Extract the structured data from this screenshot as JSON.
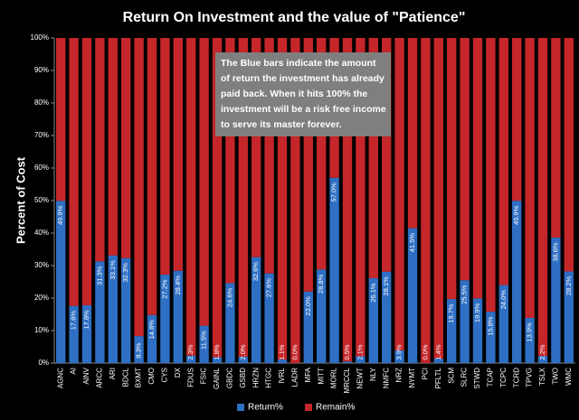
{
  "chart_data": {
    "type": "stacked_bar_100",
    "title": "Return On Investment and the value of \"Patience\"",
    "y_label": "Percent of Cost",
    "annotation": [
      "The Blue bars indicate the amount",
      "of return the investment has already",
      "paid back. When it hits 100% the",
      "investment will be  a risk free income",
      "to serve its master forever."
    ],
    "categories": [
      "AGNC",
      "AI",
      "AINV",
      "ARCC",
      "ARI",
      "BDCL",
      "BXMT",
      "CMO",
      "CYS",
      "DX",
      "FDUS",
      "FSIC",
      "GAINL",
      "GBDC",
      "GSBD",
      "HRZN",
      "HTGC",
      "IVRL",
      "LADR",
      "MFA",
      "MITT",
      "MORL",
      "MRCCL",
      "NEWT",
      "NLY",
      "NMFC",
      "NRZ",
      "NYMT",
      "PCI",
      "PFLTL",
      "SCM",
      "SLRC",
      "STWD",
      "TCAP",
      "TCPC",
      "TCRD",
      "TPVG",
      "TSLX",
      "TWO",
      "WMC"
    ],
    "series": [
      {
        "name": "Return%",
        "color": "#2e6fc4",
        "values": [
          49.9,
          17.6,
          17.8,
          31.3,
          33.1,
          32.3,
          8.3,
          14.8,
          27.2,
          28.4,
          2.3,
          11.5,
          1.8,
          24.6,
          2.0,
          32.6,
          27.6,
          1.1,
          0.0,
          22.0,
          28.8,
          57.0,
          0.5,
          2.1,
          26.1,
          28.1,
          3.9,
          41.5,
          0.0,
          1.4,
          19.7,
          25.5,
          19.9,
          15.8,
          24.0,
          49.9,
          13.9,
          2.2,
          38.6,
          28.2
        ],
        "value_labels": [
          "49.9%",
          "17.6%",
          "17.8%",
          "31.3%",
          "33.1%",
          "32.3%",
          "8.3%",
          "14.8%",
          "27.2%",
          "28.4%",
          "2.3%",
          "11.5%",
          "1.8%",
          "24.6%",
          "2.0%",
          "32.6%",
          "27.6%",
          "1.1%",
          "0.0%",
          "22.0%",
          "28.8%",
          "57.0%",
          "0.5%",
          "2.1%",
          "26.1%",
          "28.1%",
          "3.9%",
          "41.5%",
          "0.0%",
          "1.4%",
          "19.7%",
          "25.5%",
          "19.9%",
          "15.8%",
          "24.0%",
          "49.9%",
          "13.9%",
          "2.2%",
          "38.6%",
          "28.2%"
        ]
      },
      {
        "name": "Remain%",
        "color": "#c4262a",
        "values": [
          50.1,
          82.4,
          82.2,
          68.7,
          66.9,
          67.7,
          91.7,
          85.2,
          72.8,
          71.6,
          97.7,
          88.5,
          98.2,
          75.4,
          98.0,
          67.4,
          72.4,
          98.9,
          100.0,
          78.0,
          71.2,
          43.0,
          99.5,
          97.9,
          73.9,
          71.9,
          96.1,
          58.5,
          100.0,
          98.6,
          80.3,
          74.5,
          80.1,
          84.2,
          76.0,
          50.1,
          86.1,
          97.8,
          61.4,
          71.8
        ]
      }
    ],
    "ylim": [
      0,
      100
    ],
    "yticks": [
      {
        "value": 0,
        "label": "0%"
      },
      {
        "value": 10,
        "label": "10%"
      },
      {
        "value": 20,
        "label": "20%"
      },
      {
        "value": 30,
        "label": "30%"
      },
      {
        "value": 40,
        "label": "40%"
      },
      {
        "value": 50,
        "label": "50%"
      },
      {
        "value": 60,
        "label": "60%"
      },
      {
        "value": 70,
        "label": "70%"
      },
      {
        "value": 80,
        "label": "80%"
      },
      {
        "value": 90,
        "label": "90%"
      },
      {
        "value": 100,
        "label": "100%"
      }
    ],
    "legend": "bottom"
  }
}
